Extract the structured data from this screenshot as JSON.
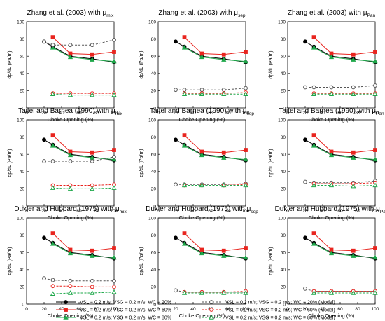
{
  "chart_data": [
    {
      "type": "line",
      "title": "Zhang et al. (2003) with",
      "title_symbol": "μ",
      "title_sub": "mix",
      "xlabel": "Choke Opening (%)",
      "ylabel": "dp/dL (Pa/m)",
      "xlim": [
        0,
        100
      ],
      "ylim": [
        0,
        100
      ],
      "xticks": [
        0,
        20,
        40,
        60,
        80,
        100
      ],
      "yticks": [
        0,
        20,
        40,
        60,
        80,
        100
      ],
      "series": [
        {
          "key": "s1",
          "x": [
            20,
            30,
            50,
            75,
            100
          ],
          "y": [
            77,
            71,
            60,
            57,
            53
          ]
        },
        {
          "key": "s2",
          "x": [
            30,
            50,
            75,
            100
          ],
          "y": [
            82,
            63,
            62,
            65
          ]
        },
        {
          "key": "s3",
          "x": [
            30,
            50,
            75,
            100
          ],
          "y": [
            70,
            59,
            56,
            54
          ]
        },
        {
          "key": "m1",
          "x": [
            20,
            30,
            50,
            75,
            100
          ],
          "y": [
            77,
            73,
            73,
            73,
            79
          ]
        },
        {
          "key": "m2",
          "x": [
            30,
            50,
            75,
            100
          ],
          "y": [
            17,
            17,
            17,
            17
          ]
        },
        {
          "key": "m3",
          "x": [
            30,
            50,
            75,
            100
          ],
          "y": [
            16,
            15,
            15,
            15
          ]
        }
      ]
    },
    {
      "type": "line",
      "title": "Zhang et al. (2003) with",
      "title_symbol": "μ",
      "title_sub": "sep",
      "xlabel": "Choke Opening (%)",
      "ylabel": "dp/dL (Pa/m)",
      "xlim": [
        0,
        100
      ],
      "ylim": [
        0,
        100
      ],
      "xticks": [
        0,
        20,
        40,
        60,
        80,
        100
      ],
      "yticks": [
        0,
        20,
        40,
        60,
        80,
        100
      ],
      "series": [
        {
          "key": "s1",
          "x": [
            20,
            30,
            50,
            75,
            100
          ],
          "y": [
            77,
            71,
            60,
            57,
            53
          ]
        },
        {
          "key": "s2",
          "x": [
            30,
            50,
            75,
            100
          ],
          "y": [
            82,
            63,
            62,
            65
          ]
        },
        {
          "key": "s3",
          "x": [
            30,
            50,
            75,
            100
          ],
          "y": [
            70,
            59,
            56,
            54
          ]
        },
        {
          "key": "m1",
          "x": [
            20,
            30,
            50,
            75,
            100
          ],
          "y": [
            21,
            21,
            21,
            21,
            23
          ]
        },
        {
          "key": "m2",
          "x": [
            30,
            50,
            75,
            100
          ],
          "y": [
            17,
            17,
            17,
            18
          ]
        },
        {
          "key": "m3",
          "x": [
            30,
            50,
            75,
            100
          ],
          "y": [
            16,
            16,
            16,
            16
          ]
        }
      ]
    },
    {
      "type": "line",
      "title": "Zhang et al. (2003) with",
      "title_symbol": "μ",
      "title_sub": "Pan",
      "xlabel": "Choke Opening (%)",
      "ylabel": "dp/dL (Pa/m)",
      "xlim": [
        0,
        100
      ],
      "ylim": [
        0,
        100
      ],
      "xticks": [
        0,
        20,
        40,
        60,
        80,
        100
      ],
      "yticks": [
        0,
        20,
        40,
        60,
        80,
        100
      ],
      "series": [
        {
          "key": "s1",
          "x": [
            20,
            30,
            50,
            75,
            100
          ],
          "y": [
            77,
            71,
            60,
            57,
            53
          ]
        },
        {
          "key": "s2",
          "x": [
            30,
            50,
            75,
            100
          ],
          "y": [
            82,
            63,
            62,
            65
          ]
        },
        {
          "key": "s3",
          "x": [
            30,
            50,
            75,
            100
          ],
          "y": [
            70,
            59,
            56,
            54
          ]
        },
        {
          "key": "m1",
          "x": [
            20,
            30,
            50,
            75,
            100
          ],
          "y": [
            24,
            24,
            24,
            24,
            26
          ]
        },
        {
          "key": "m2",
          "x": [
            30,
            50,
            75,
            100
          ],
          "y": [
            17,
            17,
            17,
            17
          ]
        },
        {
          "key": "m3",
          "x": [
            30,
            50,
            75,
            100
          ],
          "y": [
            16,
            16,
            16,
            16
          ]
        }
      ]
    },
    {
      "type": "line",
      "title": "Taitel and Barnea (1990) with",
      "title_symbol": "μ",
      "title_sub": "mix",
      "xlabel": "Choke Opening (%)",
      "ylabel": "dp/dL (Pa/m)",
      "xlim": [
        0,
        100
      ],
      "ylim": [
        0,
        100
      ],
      "xticks": [
        0,
        20,
        40,
        60,
        80,
        100
      ],
      "yticks": [
        0,
        20,
        40,
        60,
        80,
        100
      ],
      "series": [
        {
          "key": "s1",
          "x": [
            20,
            30,
            50,
            75,
            100
          ],
          "y": [
            77,
            71,
            60,
            57,
            53
          ]
        },
        {
          "key": "s2",
          "x": [
            30,
            50,
            75,
            100
          ],
          "y": [
            82,
            63,
            62,
            65
          ]
        },
        {
          "key": "s3",
          "x": [
            30,
            50,
            75,
            100
          ],
          "y": [
            70,
            59,
            56,
            54
          ]
        },
        {
          "key": "m1",
          "x": [
            20,
            30,
            50,
            75,
            100
          ],
          "y": [
            52,
            52,
            52,
            52,
            57
          ]
        },
        {
          "key": "m2",
          "x": [
            30,
            50,
            75,
            100
          ],
          "y": [
            24,
            24,
            24,
            25
          ]
        },
        {
          "key": "m3",
          "x": [
            30,
            50,
            75,
            100
          ],
          "y": [
            21,
            20,
            20,
            21
          ]
        }
      ]
    },
    {
      "type": "line",
      "title": "Taitel and Barnea (1990) with",
      "title_symbol": "μ",
      "title_sub": "sep",
      "xlabel": "Choke Opening (%)",
      "ylabel": "dp/dL (Pa/m)",
      "xlim": [
        0,
        100
      ],
      "ylim": [
        0,
        100
      ],
      "xticks": [
        0,
        20,
        40,
        60,
        80,
        100
      ],
      "yticks": [
        0,
        20,
        40,
        60,
        80,
        100
      ],
      "series": [
        {
          "key": "s1",
          "x": [
            20,
            30,
            50,
            75,
            100
          ],
          "y": [
            77,
            71,
            60,
            57,
            53
          ]
        },
        {
          "key": "s2",
          "x": [
            30,
            50,
            75,
            100
          ],
          "y": [
            82,
            63,
            62,
            65
          ]
        },
        {
          "key": "s3",
          "x": [
            30,
            50,
            75,
            100
          ],
          "y": [
            70,
            59,
            56,
            54
          ]
        },
        {
          "key": "m1",
          "x": [
            20,
            30,
            50,
            75,
            100
          ],
          "y": [
            25,
            25,
            25,
            25,
            26
          ]
        },
        {
          "key": "m2",
          "x": [
            30,
            50,
            75,
            100
          ],
          "y": [
            24,
            24,
            24,
            25
          ]
        },
        {
          "key": "m3",
          "x": [
            30,
            50,
            75,
            100
          ],
          "y": [
            24,
            24,
            24,
            24
          ]
        }
      ]
    },
    {
      "type": "line",
      "title": "Taitel and Barnea (1990) with",
      "title_symbol": "μ",
      "title_sub": "Pan",
      "xlabel": "Choke Opening (%)",
      "ylabel": "dp/dL (Pa/m)",
      "xlim": [
        0,
        100
      ],
      "ylim": [
        0,
        100
      ],
      "xticks": [
        0,
        20,
        40,
        60,
        80,
        100
      ],
      "yticks": [
        0,
        20,
        40,
        60,
        80,
        100
      ],
      "series": [
        {
          "key": "s1",
          "x": [
            20,
            30,
            50,
            75,
            100
          ],
          "y": [
            77,
            71,
            60,
            57,
            53
          ]
        },
        {
          "key": "s2",
          "x": [
            30,
            50,
            75,
            100
          ],
          "y": [
            82,
            63,
            62,
            65
          ]
        },
        {
          "key": "s3",
          "x": [
            30,
            50,
            75,
            100
          ],
          "y": [
            70,
            59,
            56,
            54
          ]
        },
        {
          "key": "m1",
          "x": [
            20,
            30,
            50,
            75,
            100
          ],
          "y": [
            28,
            27,
            27,
            27,
            29
          ]
        },
        {
          "key": "m2",
          "x": [
            30,
            50,
            75,
            100
          ],
          "y": [
            26,
            26,
            26,
            27
          ]
        },
        {
          "key": "m3",
          "x": [
            30,
            50,
            75,
            100
          ],
          "y": [
            24,
            24,
            23,
            24
          ]
        }
      ]
    },
    {
      "type": "line",
      "title": "Dukler and Hubbard (1975) with",
      "title_symbol": "μ",
      "title_sub": "mix",
      "xlabel": "Choke Opening (%)",
      "ylabel": "dp/dL (Pa/m)",
      "xlim": [
        0,
        100
      ],
      "ylim": [
        0,
        100
      ],
      "xticks": [
        0,
        20,
        40,
        60,
        80,
        100
      ],
      "yticks": [
        0,
        20,
        40,
        60,
        80,
        100
      ],
      "series": [
        {
          "key": "s1",
          "x": [
            20,
            30,
            50,
            75,
            100
          ],
          "y": [
            77,
            71,
            60,
            57,
            53
          ]
        },
        {
          "key": "s2",
          "x": [
            30,
            50,
            75,
            100
          ],
          "y": [
            82,
            63,
            62,
            65
          ]
        },
        {
          "key": "s3",
          "x": [
            30,
            50,
            75,
            100
          ],
          "y": [
            70,
            59,
            56,
            54
          ]
        },
        {
          "key": "m1",
          "x": [
            20,
            30,
            50,
            75,
            100
          ],
          "y": [
            30,
            28,
            27,
            27,
            27
          ]
        },
        {
          "key": "m2",
          "x": [
            30,
            50,
            75,
            100
          ],
          "y": [
            21,
            21,
            20,
            20
          ]
        },
        {
          "key": "m3",
          "x": [
            30,
            50,
            75,
            100
          ],
          "y": [
            12,
            13,
            13,
            14
          ]
        }
      ]
    },
    {
      "type": "line",
      "title": "Dukler and Hubbard (1975) with",
      "title_symbol": "μ",
      "title_sub": "sep",
      "xlabel": "Choke Opening (%)",
      "ylabel": "dp/dL (Pa/m)",
      "xlim": [
        0,
        100
      ],
      "ylim": [
        0,
        100
      ],
      "xticks": [
        0,
        20,
        40,
        60,
        80,
        100
      ],
      "yticks": [
        0,
        20,
        40,
        60,
        80,
        100
      ],
      "series": [
        {
          "key": "s1",
          "x": [
            20,
            30,
            50,
            75,
            100
          ],
          "y": [
            77,
            71,
            60,
            57,
            53
          ]
        },
        {
          "key": "s2",
          "x": [
            30,
            50,
            75,
            100
          ],
          "y": [
            82,
            63,
            62,
            65
          ]
        },
        {
          "key": "s3",
          "x": [
            30,
            50,
            75,
            100
          ],
          "y": [
            70,
            59,
            56,
            54
          ]
        },
        {
          "key": "m1",
          "x": [
            20,
            30,
            50,
            75,
            100
          ],
          "y": [
            16,
            14,
            14,
            14,
            14
          ]
        },
        {
          "key": "m2",
          "x": [
            30,
            50,
            75,
            100
          ],
          "y": [
            14,
            14,
            14,
            15
          ]
        },
        {
          "key": "m3",
          "x": [
            30,
            50,
            75,
            100
          ],
          "y": [
            13,
            13,
            13,
            13
          ]
        }
      ]
    },
    {
      "type": "line",
      "title": "Dukler and Hubbard (1975) with",
      "title_symbol": "μ",
      "title_sub": "Pan",
      "xlabel": "Choke Opening (%)",
      "ylabel": "dp/dL (Pa/m)",
      "xlim": [
        0,
        100
      ],
      "ylim": [
        0,
        100
      ],
      "xticks": [
        0,
        20,
        40,
        60,
        80,
        100
      ],
      "yticks": [
        0,
        20,
        40,
        60,
        80,
        100
      ],
      "series": [
        {
          "key": "s1",
          "x": [
            20,
            30,
            50,
            75,
            100
          ],
          "y": [
            77,
            71,
            60,
            57,
            53
          ]
        },
        {
          "key": "s2",
          "x": [
            30,
            50,
            75,
            100
          ],
          "y": [
            82,
            63,
            62,
            65
          ]
        },
        {
          "key": "s3",
          "x": [
            30,
            50,
            75,
            100
          ],
          "y": [
            70,
            59,
            56,
            54
          ]
        },
        {
          "key": "m1",
          "x": [
            20,
            30,
            50,
            75,
            100
          ],
          "y": [
            18,
            15,
            15,
            15,
            15
          ]
        },
        {
          "key": "m2",
          "x": [
            30,
            50,
            75,
            100
          ],
          "y": [
            15,
            15,
            15,
            15
          ]
        },
        {
          "key": "m3",
          "x": [
            30,
            50,
            75,
            100
          ],
          "y": [
            13,
            13,
            13,
            13
          ]
        }
      ]
    }
  ],
  "legend": [
    {
      "key": "s1",
      "label": "VSL = 0.2 m/s; VSG = 0.2 m/s; WC = 20%",
      "color": "#000000",
      "marker": "circle",
      "filled": true,
      "dashed": false
    },
    {
      "key": "s2",
      "label": "VSL = 0.2 m/s; VSG = 0.2 m/s; WC = 60%",
      "color": "#e8251f",
      "marker": "square",
      "filled": true,
      "dashed": false
    },
    {
      "key": "s3",
      "label": "VSL = 0.2 m/s; VSG = 0.2 m/s; WC = 80%",
      "color": "#1ea84a",
      "marker": "triangle",
      "filled": true,
      "dashed": false
    },
    {
      "key": "m1",
      "label": "VSL = 0.2 m/s; VSG = 0.2 m/s; WC = 20% (Model)",
      "color": "#555555",
      "marker": "circle",
      "filled": false,
      "dashed": true
    },
    {
      "key": "m2",
      "label": "VSL = 0.2 m/s; VSG = 0.2 m/s; WC = 60% (Model)",
      "color": "#e8251f",
      "marker": "circle",
      "filled": false,
      "dashed": true
    },
    {
      "key": "m3",
      "label": "VSL = 0.2 m/s; VSG = 0.2 m/s; WC = 80% (Model)",
      "color": "#1ea84a",
      "marker": "triangle",
      "filled": false,
      "dashed": true
    }
  ]
}
